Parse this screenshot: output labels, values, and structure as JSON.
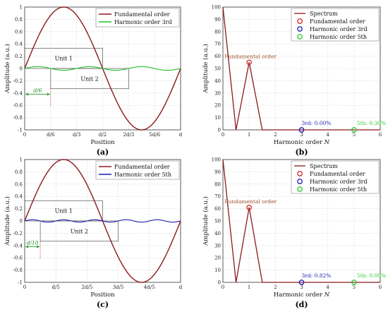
{
  "chart_data": [
    {
      "id": "a",
      "type": "line",
      "panel_label": "(a)",
      "xlabel": "Position",
      "ylabel": "Amplitude (a.u.)",
      "xlim": [
        0,
        6
      ],
      "ylim": [
        -1,
        1
      ],
      "xticks": [
        "0",
        "d/6",
        "d/3",
        "d/2",
        "2d/3",
        "5d/6",
        "d"
      ],
      "yticks": [
        "-1",
        "-0.8",
        "-0.6",
        "-0.4",
        "-0.2",
        "0",
        "0.2",
        "0.4",
        "0.6",
        "0.8",
        "1"
      ],
      "grid": true,
      "legend_position": "top-right",
      "series": [
        {
          "name": "Fundamental order",
          "color": "#8b1a1a",
          "harmonic": 1,
          "amplitude": 1.0
        },
        {
          "name": "Harmonic order 3rd",
          "color": "#22c02e",
          "harmonic": 3,
          "amplitude": 0.03
        }
      ],
      "units": [
        {
          "label": "Unit 1",
          "x": [
            0,
            3
          ],
          "y": [
            0,
            0.33
          ]
        },
        {
          "label": "Unit 2",
          "x": [
            1,
            4
          ],
          "y": [
            -0.33,
            0
          ]
        }
      ],
      "offset_label": "d/6",
      "offset_x": 1
    },
    {
      "id": "b",
      "type": "line",
      "panel_label": "(b)",
      "xlabel": "Harmonic order",
      "xlabel_var": "N",
      "ylabel": "Amplitude (a.u.)",
      "xlim": [
        0,
        6
      ],
      "ylim": [
        0,
        100
      ],
      "xticks": [
        "0",
        "1",
        "2",
        "3",
        "4",
        "5",
        "6"
      ],
      "yticks": [
        "0",
        "10",
        "20",
        "30",
        "40",
        "50",
        "60",
        "70",
        "80",
        "90",
        "100"
      ],
      "grid": true,
      "legend_position": "top-right",
      "spectrum": {
        "name": "Spectrum",
        "color": "#8b1a1a",
        "x": [
          0,
          0.5,
          1,
          1.5,
          2,
          3,
          4,
          5,
          6
        ],
        "y": [
          100,
          0,
          55,
          0,
          0,
          0,
          0,
          0,
          0
        ]
      },
      "markers": [
        {
          "name": "Fundamental order",
          "color": "#d62728",
          "x": 1,
          "y": 55
        },
        {
          "name": "Harmonic order 3rd",
          "color": "#1f1fb4",
          "x": 3,
          "y": 0
        },
        {
          "name": "Harmonic order 5th",
          "color": "#33cc33",
          "x": 5,
          "y": 0
        }
      ],
      "annotations": [
        {
          "text": "Fundamental order",
          "color": "#a0522d",
          "x": 1,
          "y": 55
        },
        {
          "text": "3rd: 0.00%",
          "color": "#1f1fb4",
          "x": 3,
          "y": 0
        },
        {
          "text": "5th: 0.30%",
          "color": "#33cc33",
          "x": 5,
          "y": 0
        }
      ]
    },
    {
      "id": "c",
      "type": "line",
      "panel_label": "(c)",
      "xlabel": "Position",
      "ylabel": "Amplitude (a.u.)",
      "xlim": [
        0,
        5
      ],
      "ylim": [
        -1,
        1
      ],
      "xticks": [
        "0",
        "d/5",
        "2d/5",
        "3d/5",
        "4d/5",
        "d"
      ],
      "yticks": [
        "-1",
        "-0.8",
        "-0.6",
        "-0.4",
        "-0.2",
        "0",
        "0.2",
        "0.4",
        "0.6",
        "0.8",
        "1"
      ],
      "grid": true,
      "legend_position": "top-right",
      "series": [
        {
          "name": "Fundamental order",
          "color": "#8b1a1a",
          "harmonic": 1,
          "amplitude": 1.0
        },
        {
          "name": "Harmonic order 5th",
          "color": "#1c1ca8",
          "harmonic": 5,
          "amplitude": 0.02
        }
      ],
      "units": [
        {
          "label": "Unit 1",
          "x": [
            0,
            2.5
          ],
          "y": [
            0,
            0.33
          ]
        },
        {
          "label": "Unit 2",
          "x": [
            0.5,
            3
          ],
          "y": [
            -0.33,
            0
          ]
        }
      ],
      "offset_label": "d/10",
      "offset_x": 0.5
    },
    {
      "id": "d",
      "type": "line",
      "panel_label": "(d)",
      "xlabel": "Harmonic order",
      "xlabel_var": "N",
      "ylabel": "Amplitude (a.u.)",
      "xlim": [
        0,
        6
      ],
      "ylim": [
        0,
        100
      ],
      "xticks": [
        "0",
        "1",
        "2",
        "3",
        "4",
        "5",
        "6"
      ],
      "yticks": [
        "0",
        "10",
        "20",
        "30",
        "40",
        "50",
        "60",
        "70",
        "80",
        "90",
        "100"
      ],
      "grid": true,
      "legend_position": "top-right",
      "spectrum": {
        "name": "Spectrum",
        "color": "#8b1a1a",
        "x": [
          0,
          0.5,
          1,
          1.5,
          2,
          3,
          4,
          5,
          6
        ],
        "y": [
          100,
          0,
          61,
          0,
          0,
          0,
          0,
          0,
          0
        ]
      },
      "markers": [
        {
          "name": "Fundamental order",
          "color": "#d62728",
          "x": 1,
          "y": 61
        },
        {
          "name": "Harmonic order 3rd",
          "color": "#1f1fb4",
          "x": 3,
          "y": 0
        },
        {
          "name": "Harmonic order 5th",
          "color": "#33cc33",
          "x": 5,
          "y": 0
        }
      ],
      "annotations": [
        {
          "text": "Fundamental order",
          "color": "#a0522d",
          "x": 1,
          "y": 61
        },
        {
          "text": "3rd: 0.82%",
          "color": "#1f1fb4",
          "x": 3,
          "y": 0
        },
        {
          "text": "5th: 0.00%",
          "color": "#33cc33",
          "x": 5,
          "y": 0
        }
      ]
    }
  ]
}
